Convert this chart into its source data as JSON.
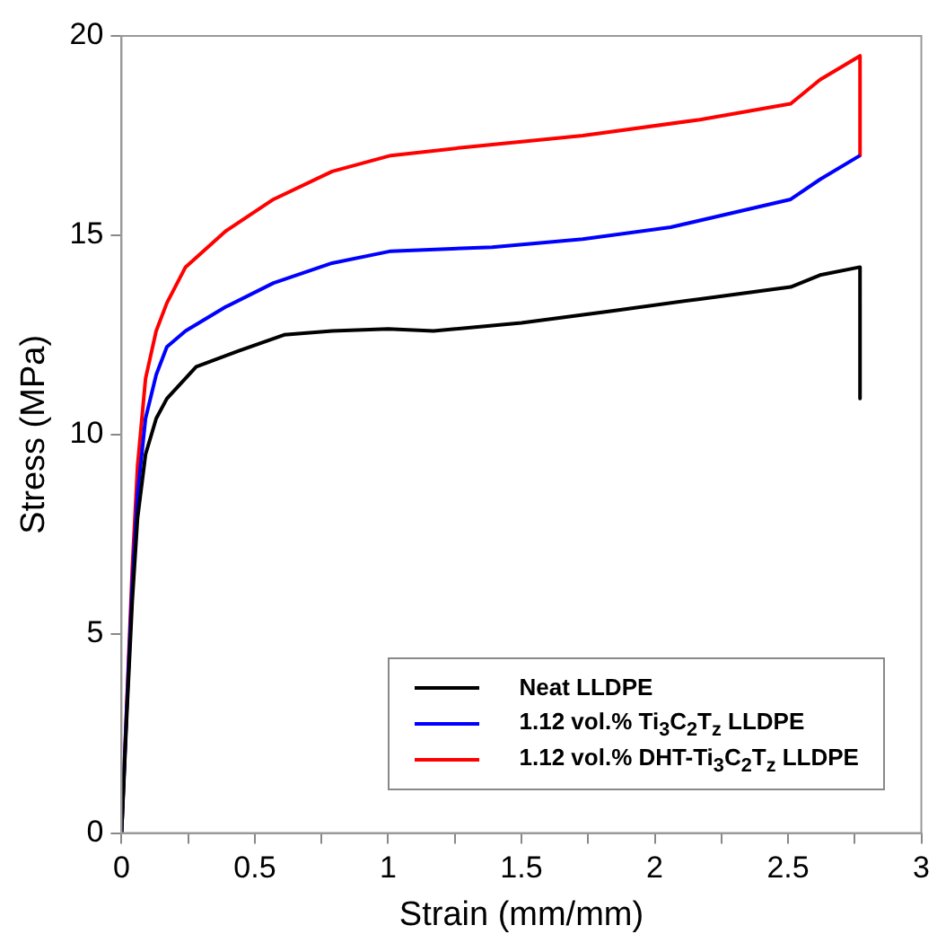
{
  "chart_data": {
    "type": "line",
    "xlabel": "Strain (mm/mm)",
    "ylabel": "Stress (MPa)",
    "xlim": [
      0,
      3
    ],
    "ylim": [
      0,
      20
    ],
    "xticks": [
      0,
      {
        "value": 0.25,
        "label": null
      },
      0.5,
      {
        "value": 0.75,
        "label": null
      },
      1,
      {
        "value": 1.25,
        "label": null
      },
      1.5,
      {
        "value": 1.75,
        "label": null
      },
      2,
      {
        "value": 2.25,
        "label": null
      },
      2.5,
      {
        "value": 2.75,
        "label": null
      },
      3
    ],
    "yticks": [
      0,
      5,
      10,
      15,
      20
    ],
    "grid": false,
    "legend": "bottom right",
    "marker": "none",
    "line_style": "solid",
    "series": [
      {
        "name": "Neat LLDPE",
        "color": "#000000",
        "x": [
          0,
          0.02,
          0.04,
          0.06,
          0.09,
          0.13,
          0.17,
          0.28,
          0.44,
          0.61,
          0.79,
          1.0,
          1.17,
          1.5,
          1.84,
          2.17,
          2.51,
          2.62,
          2.77,
          2.77
        ],
        "values": [
          0,
          3,
          5.8,
          7.9,
          9.5,
          10.4,
          10.9,
          11.7,
          12.1,
          12.5,
          12.6,
          12.65,
          12.6,
          12.8,
          13.1,
          13.4,
          13.7,
          14,
          14.2,
          10.9
        ]
      },
      {
        "name": "1.12 vol.% Ti$_{3}$C$_{2}$T$_{z}$ LLDPE",
        "color": "#0000ff",
        "x": [
          0,
          0.02,
          0.04,
          0.06,
          0.09,
          0.13,
          0.17,
          0.24,
          0.39,
          0.57,
          0.79,
          1.01,
          1.39,
          1.73,
          2.06,
          2.51,
          2.62,
          2.77
        ],
        "values": [
          0,
          3.2,
          6.2,
          8.5,
          10.4,
          11.5,
          12.2,
          12.6,
          13.2,
          13.8,
          14.3,
          14.6,
          14.7,
          14.9,
          15.2,
          15.9,
          16.4,
          17
        ]
      },
      {
        "name": "1.12 vol.% DHT-Ti$_{3}$C$_{2}$T$_{z}$ LLDPE",
        "color": "#ff0000",
        "x": [
          0,
          0.04,
          0.06,
          0.09,
          0.13,
          0.17,
          0.24,
          0.39,
          0.57,
          0.79,
          1.01,
          1.28,
          1.73,
          2.17,
          2.51,
          2.62,
          2.77,
          2.77
        ],
        "values": [
          0,
          6.6,
          9.2,
          11.4,
          12.6,
          13.3,
          14.2,
          15.1,
          15.9,
          16.6,
          17,
          17.2,
          17.5,
          17.9,
          18.3,
          18.9,
          19.5,
          17
        ]
      }
    ]
  }
}
